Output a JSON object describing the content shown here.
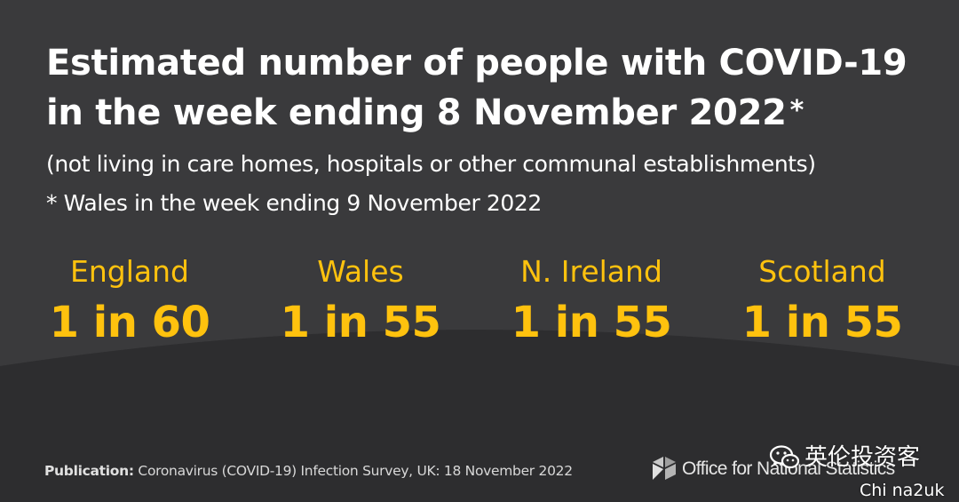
{
  "title_line1": "Estimated number of people with COVID-19",
  "title_line2": "in the week ending 8 November 2022",
  "title_asterisk": "*",
  "subtitle": "(not living in care homes, hospitals or other communal establishments)",
  "footnote": "* Wales in the week ending 9 November 2022",
  "stats": [
    {
      "country": "England",
      "value": "1 in 60"
    },
    {
      "country": "Wales",
      "value": "1 in 55"
    },
    {
      "country": "N. Ireland",
      "value": "1 in 55"
    },
    {
      "country": "Scotland",
      "value": "1 in 55"
    }
  ],
  "footer": {
    "publication_label": "Publication:",
    "publication_text": "Coronavirus (COVID-19) Infection Survey, UK: 18 November 2022",
    "org_name": "Office for National Statistics"
  },
  "watermark": {
    "icon": "wechat-icon",
    "text": "英伦投资客",
    "id": "Chi na2uk"
  },
  "colors": {
    "background": "#3a3a3c",
    "lower_band": "#2d2d2f",
    "accent": "#ffc20e",
    "text": "#ffffff"
  }
}
